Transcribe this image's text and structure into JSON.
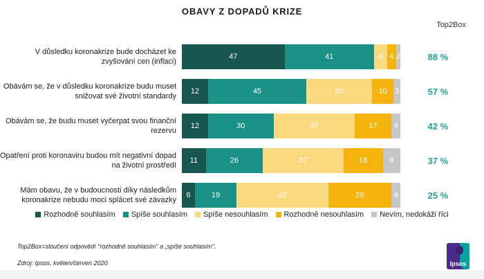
{
  "title": "OBAVY Z DOPADŮ KRIZE",
  "top2box_header": "Top2Box",
  "chart_data": {
    "type": "bar",
    "orientation": "horizontal",
    "stacked": true,
    "title": "OBAVY Z DOPADŮ KRIZE",
    "xlim": [
      0,
      100
    ],
    "legend_position": "bottom",
    "value_label_color": "#FFFFFF",
    "categories": [
      "V důsledku koronakrize bude docházet ke zvyšování cen (inflaci)",
      "Obávám se, že v důsledku koronakrize budu muset snižovat své životní standardy",
      "Obávám se, že budu muset vyčerpat svou finanční rezervu",
      "Opatření proti koronaviru budou mít negativní dopad na životní prostředí",
      "Mám obavu, že v budoucnosti díky následkům koronakrize nebudu moci splácet své závazky"
    ],
    "series": [
      {
        "name": "Rozhodně souhlasím",
        "color": "#17564F",
        "values": [
          47,
          12,
          12,
          11,
          6
        ]
      },
      {
        "name": "Spíše souhlasím",
        "color": "#1A9187",
        "values": [
          41,
          45,
          30,
          26,
          19
        ]
      },
      {
        "name": "Spíše nesouhlasím",
        "color": "#FBD97F",
        "values": [
          6,
          30,
          37,
          37,
          42
        ]
      },
      {
        "name": "Rozhodně nesouhlasím",
        "color": "#F5B40D",
        "values": [
          4,
          10,
          17,
          18,
          29
        ]
      },
      {
        "name": "Nevím, nedokáži říci",
        "color": "#C6C6C6",
        "values": [
          2,
          3,
          4,
          8,
          4
        ]
      }
    ],
    "top2box_values": [
      "88 %",
      "57 %",
      "42 %",
      "37 %",
      "25 %"
    ]
  },
  "colors": {
    "accent_teal": "#23A296",
    "title_text": "#1A1A1A"
  },
  "footnotes": {
    "top2box_note": "Top2Box=sloučení odpovědí \"rozhodně souhlasím\" a „spíše souhlasím\".",
    "source": "Zdroj: Ipsos, květen/červen 2020"
  },
  "logo": {
    "text": "Ipsos"
  }
}
